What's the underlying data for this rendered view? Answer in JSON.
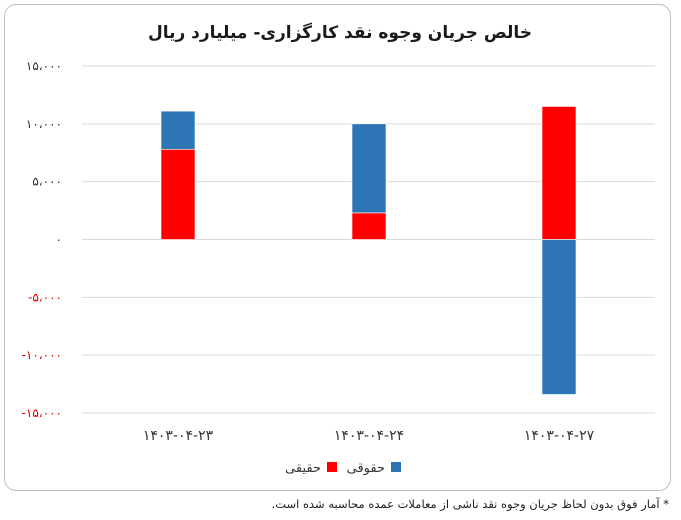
{
  "chart_data": {
    "type": "bar",
    "stacked": true,
    "title": "خالص جریان وجوه نقد کارگزاری- میلیارد ریال",
    "categories": [
      "۱۴۰۳-۰۴-۲۳",
      "۱۴۰۳-۰۴-۲۴",
      "۱۴۰۳-۰۴-۲۷"
    ],
    "series": [
      {
        "name": "حقیقی",
        "color": "#ff0000",
        "values": [
          7800,
          2300,
          11500
        ]
      },
      {
        "name": "حقوقی",
        "color": "#2e75b6",
        "values": [
          3300,
          7700,
          -13400
        ]
      }
    ],
    "ylim": [
      -15000,
      15000
    ],
    "yticks": [
      {
        "value": 15000,
        "label": "۱۵،۰۰۰",
        "color": "#333333"
      },
      {
        "value": 10000,
        "label": "۱۰،۰۰۰",
        "color": "#333333"
      },
      {
        "value": 5000,
        "label": "۵،۰۰۰",
        "color": "#333333"
      },
      {
        "value": 0,
        "label": "۰",
        "color": "#333333"
      },
      {
        "value": -5000,
        "label": "-۵،۰۰۰",
        "color": "#e00000"
      },
      {
        "value": -10000,
        "label": "-۱۰،۰۰۰",
        "color": "#e00000"
      },
      {
        "value": -15000,
        "label": "-۱۵،۰۰۰",
        "color": "#e00000"
      }
    ],
    "grid": true,
    "legend_position": "bottom"
  },
  "footnote": "* آمار فوق بدون لحاظ جریان وجوه نقد ناشی از معاملات عمده محاسبه شده است."
}
